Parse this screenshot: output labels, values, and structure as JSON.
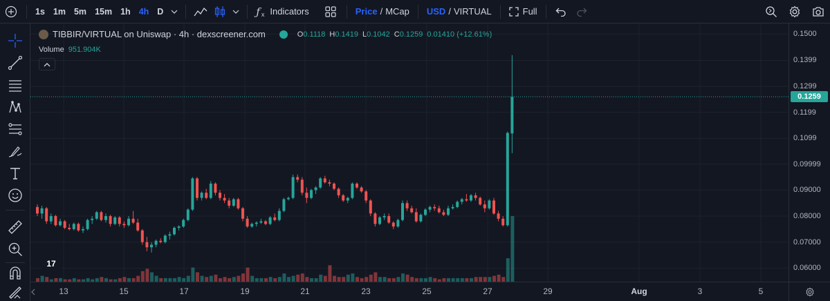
{
  "toolbar": {
    "timeframes": [
      "1s",
      "1m",
      "5m",
      "15m",
      "1h",
      "4h",
      "D"
    ],
    "active_timeframe": "4h",
    "indicators_label": "Indicators",
    "price_label": "Price",
    "mcap_label": "MCap",
    "currency_label": "USD",
    "quote_label": "VIRTUAL",
    "full_label": "Full",
    "separator": "/"
  },
  "legend": {
    "title": "TIBBIR/VIRTUAL on Uniswap · 4h · dexscreener.com",
    "o_label": "O",
    "o_value": "0.1118",
    "h_label": "H",
    "h_value": "0.1419",
    "l_label": "L",
    "l_value": "0.1042",
    "c_label": "C",
    "c_value": "0.1259",
    "change": "0.01410 (+12.61%)",
    "volume_label": "Volume",
    "volume_value": "951.904K"
  },
  "logo_text": "17",
  "colors": {
    "up": "#26a69a",
    "down": "#ef5350",
    "accent": "#2962ff",
    "bg": "#131722"
  },
  "chart_data": {
    "type": "candlestick",
    "price_ticks": [
      "0.1500",
      "0.1399",
      "0.1299",
      "0.1199",
      "0.1099",
      "0.09999",
      "0.09000",
      "0.08000",
      "0.07000",
      "0.06000"
    ],
    "current_price": "0.1259",
    "time_ticks": [
      "13",
      "15",
      "17",
      "19",
      "21",
      "23",
      "25",
      "27",
      "29",
      "Aug",
      "3",
      "5"
    ],
    "ylim": [
      0.0585,
      0.1525
    ],
    "candles": [
      [
        0.0835,
        0.0845,
        0.08,
        0.081
      ],
      [
        0.081,
        0.084,
        0.079,
        0.083
      ],
      [
        0.083,
        0.0835,
        0.077,
        0.078
      ],
      [
        0.078,
        0.081,
        0.077,
        0.08
      ],
      [
        0.08,
        0.0805,
        0.076,
        0.0765
      ],
      [
        0.0765,
        0.079,
        0.076,
        0.078
      ],
      [
        0.078,
        0.0785,
        0.075,
        0.0755
      ],
      [
        0.0755,
        0.077,
        0.0745,
        0.075
      ],
      [
        0.075,
        0.0775,
        0.0745,
        0.077
      ],
      [
        0.077,
        0.0775,
        0.074,
        0.0745
      ],
      [
        0.0745,
        0.076,
        0.0735,
        0.075
      ],
      [
        0.075,
        0.079,
        0.0745,
        0.0785
      ],
      [
        0.0785,
        0.08,
        0.077,
        0.079
      ],
      [
        0.079,
        0.082,
        0.0785,
        0.0815
      ],
      [
        0.0815,
        0.082,
        0.078,
        0.0785
      ],
      [
        0.0785,
        0.081,
        0.0775,
        0.08
      ],
      [
        0.08,
        0.0805,
        0.076,
        0.077
      ],
      [
        0.077,
        0.08,
        0.0765,
        0.0795
      ],
      [
        0.0795,
        0.08,
        0.076,
        0.077
      ],
      [
        0.077,
        0.078,
        0.0755,
        0.0765
      ],
      [
        0.0765,
        0.08,
        0.076,
        0.079
      ],
      [
        0.079,
        0.082,
        0.077,
        0.0775
      ],
      [
        0.0775,
        0.079,
        0.074,
        0.0745
      ],
      [
        0.0745,
        0.075,
        0.069,
        0.07
      ],
      [
        0.07,
        0.072,
        0.0665,
        0.068
      ],
      [
        0.068,
        0.07,
        0.066,
        0.069
      ],
      [
        0.069,
        0.071,
        0.068,
        0.0705
      ],
      [
        0.0705,
        0.0715,
        0.0695,
        0.07
      ],
      [
        0.07,
        0.073,
        0.0695,
        0.0725
      ],
      [
        0.0725,
        0.074,
        0.071,
        0.073
      ],
      [
        0.073,
        0.076,
        0.0725,
        0.0755
      ],
      [
        0.0755,
        0.0765,
        0.0745,
        0.076
      ],
      [
        0.076,
        0.079,
        0.0755,
        0.0785
      ],
      [
        0.0785,
        0.083,
        0.078,
        0.0825
      ],
      [
        0.0825,
        0.095,
        0.082,
        0.0945
      ],
      [
        0.0945,
        0.095,
        0.086,
        0.087
      ],
      [
        0.087,
        0.0895,
        0.086,
        0.089
      ],
      [
        0.089,
        0.0905,
        0.0865,
        0.087
      ],
      [
        0.087,
        0.0935,
        0.0865,
        0.0925
      ],
      [
        0.0925,
        0.093,
        0.088,
        0.089
      ],
      [
        0.089,
        0.09,
        0.086,
        0.087
      ],
      [
        0.087,
        0.0885,
        0.085,
        0.086
      ],
      [
        0.086,
        0.087,
        0.083,
        0.084
      ],
      [
        0.084,
        0.087,
        0.0835,
        0.0865
      ],
      [
        0.0865,
        0.087,
        0.0825,
        0.083
      ],
      [
        0.083,
        0.0835,
        0.078,
        0.079
      ],
      [
        0.079,
        0.08,
        0.0755,
        0.076
      ],
      [
        0.076,
        0.0775,
        0.0755,
        0.077
      ],
      [
        0.077,
        0.078,
        0.076,
        0.0775
      ],
      [
        0.0775,
        0.079,
        0.077,
        0.078
      ],
      [
        0.078,
        0.0785,
        0.0765,
        0.077
      ],
      [
        0.077,
        0.08,
        0.0765,
        0.0795
      ],
      [
        0.0795,
        0.081,
        0.078,
        0.0785
      ],
      [
        0.0785,
        0.083,
        0.078,
        0.082
      ],
      [
        0.082,
        0.087,
        0.0815,
        0.0865
      ],
      [
        0.0865,
        0.0875,
        0.086,
        0.087
      ],
      [
        0.087,
        0.096,
        0.0865,
        0.095
      ],
      [
        0.095,
        0.096,
        0.093,
        0.094
      ],
      [
        0.094,
        0.095,
        0.088,
        0.089
      ],
      [
        0.089,
        0.091,
        0.085,
        0.087
      ],
      [
        0.087,
        0.0905,
        0.0865,
        0.09
      ],
      [
        0.09,
        0.0915,
        0.0885,
        0.091
      ],
      [
        0.091,
        0.095,
        0.0905,
        0.0945
      ],
      [
        0.0945,
        0.0955,
        0.0925,
        0.093
      ],
      [
        0.093,
        0.094,
        0.0915,
        0.0925
      ],
      [
        0.0925,
        0.093,
        0.09,
        0.0905
      ],
      [
        0.0905,
        0.091,
        0.087,
        0.088
      ],
      [
        0.088,
        0.0885,
        0.0855,
        0.086
      ],
      [
        0.086,
        0.0875,
        0.085,
        0.087
      ],
      [
        0.087,
        0.093,
        0.0865,
        0.0925
      ],
      [
        0.0925,
        0.093,
        0.0905,
        0.091
      ],
      [
        0.091,
        0.0915,
        0.089,
        0.0895
      ],
      [
        0.0895,
        0.09,
        0.085,
        0.086
      ],
      [
        0.086,
        0.0865,
        0.08,
        0.081
      ],
      [
        0.081,
        0.0815,
        0.076,
        0.077
      ],
      [
        0.077,
        0.08,
        0.0765,
        0.0795
      ],
      [
        0.0795,
        0.081,
        0.0785,
        0.08
      ],
      [
        0.08,
        0.081,
        0.077,
        0.0775
      ],
      [
        0.0775,
        0.078,
        0.075,
        0.076
      ],
      [
        0.076,
        0.079,
        0.0755,
        0.0785
      ],
      [
        0.0785,
        0.086,
        0.078,
        0.085
      ],
      [
        0.085,
        0.086,
        0.082,
        0.083
      ],
      [
        0.083,
        0.084,
        0.081,
        0.0815
      ],
      [
        0.0815,
        0.083,
        0.0775,
        0.078
      ],
      [
        0.078,
        0.081,
        0.0775,
        0.0805
      ],
      [
        0.0805,
        0.083,
        0.08,
        0.0825
      ],
      [
        0.0825,
        0.084,
        0.0815,
        0.0835
      ],
      [
        0.0835,
        0.0845,
        0.082,
        0.083
      ],
      [
        0.083,
        0.084,
        0.081,
        0.0815
      ],
      [
        0.0815,
        0.0825,
        0.08,
        0.0805
      ],
      [
        0.0805,
        0.084,
        0.08,
        0.083
      ],
      [
        0.083,
        0.0845,
        0.0825,
        0.0835
      ],
      [
        0.0835,
        0.086,
        0.083,
        0.0855
      ],
      [
        0.0855,
        0.087,
        0.0845,
        0.0865
      ],
      [
        0.0865,
        0.0885,
        0.0855,
        0.086
      ],
      [
        0.086,
        0.0885,
        0.0855,
        0.088
      ],
      [
        0.088,
        0.089,
        0.086,
        0.087
      ],
      [
        0.087,
        0.0875,
        0.084,
        0.0845
      ],
      [
        0.0845,
        0.086,
        0.0815,
        0.083
      ],
      [
        0.083,
        0.0865,
        0.0825,
        0.086
      ],
      [
        0.086,
        0.087,
        0.0805,
        0.081
      ],
      [
        0.081,
        0.082,
        0.078,
        0.079
      ],
      [
        0.079,
        0.08,
        0.076,
        0.0765
      ],
      [
        0.0765,
        0.1125,
        0.076,
        0.112
      ],
      [
        0.1118,
        0.1419,
        0.1042,
        0.1259
      ]
    ],
    "volumes": [
      3,
      5,
      4,
      2,
      3,
      3,
      2,
      2,
      3,
      2,
      2,
      3,
      2,
      3,
      4,
      3,
      2,
      2,
      3,
      4,
      3,
      3,
      5,
      9,
      11,
      8,
      5,
      3,
      3,
      3,
      3,
      4,
      3,
      5,
      12,
      8,
      5,
      4,
      5,
      6,
      3,
      4,
      3,
      4,
      5,
      7,
      12,
      5,
      3,
      3,
      3,
      4,
      3,
      4,
      7,
      4,
      5,
      6,
      7,
      4,
      3,
      3,
      6,
      5,
      14,
      5,
      4,
      4,
      6,
      7,
      4,
      3,
      4,
      6,
      8,
      4,
      4,
      3,
      3,
      4,
      7,
      6,
      4,
      3,
      3,
      3,
      4,
      3,
      2,
      3,
      3,
      3,
      3,
      3,
      3,
      3,
      4,
      4,
      4,
      4,
      5,
      6,
      4,
      20,
      56
    ]
  }
}
